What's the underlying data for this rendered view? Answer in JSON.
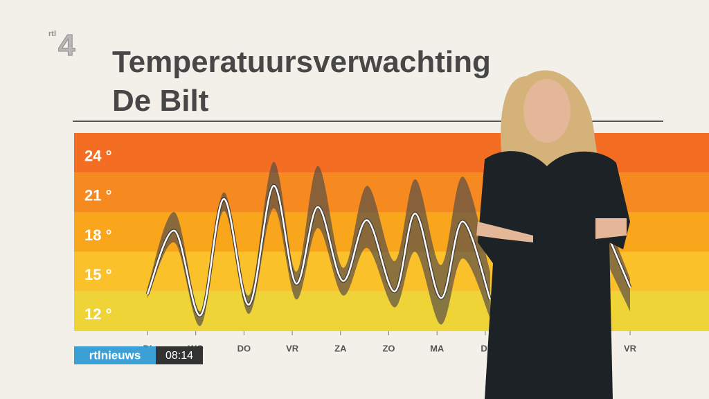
{
  "chart_data": {
    "type": "line",
    "title": "Temperatuursverwachting",
    "subtitle": "De Bilt",
    "channel": "4",
    "channel_prefix": "rtl",
    "ticker_brand": "rtlnieuws",
    "ticker_time": "08:14",
    "x": [
      0,
      0.56,
      1.1,
      1.58,
      2.1,
      2.61,
      3.08,
      3.53,
      4.05,
      4.55,
      5.12,
      5.55,
      6.08,
      6.53,
      7.1,
      8.3,
      9.57,
      10
    ],
    "values": [
      13.3,
      18.1,
      11.7,
      20.5,
      12.5,
      21.5,
      14.1,
      19.9,
      14.3,
      18.9,
      13.5,
      19.4,
      13.0,
      18.8,
      12.9,
      null,
      17.5,
      13.8
    ],
    "upper": [
      13.8,
      19.5,
      12.0,
      21.0,
      13.2,
      23.3,
      15.0,
      23.0,
      15.3,
      21.5,
      15.8,
      22.0,
      15.5,
      22.2,
      15.0,
      null,
      18.5,
      14.5
    ],
    "lower": [
      13.0,
      17.2,
      10.9,
      19.6,
      11.8,
      19.8,
      12.9,
      18.3,
      13.2,
      16.8,
      12.3,
      16.5,
      11.0,
      16.0,
      11.5,
      null,
      15.3,
      12.0
    ],
    "color": "#ffffff",
    "range_color": "#5a4f46",
    "xlim": [
      0,
      10
    ],
    "xticks": [
      {
        "value": 0,
        "label": "DI"
      },
      {
        "value": 1,
        "label": "WO"
      },
      {
        "value": 2,
        "label": "DO"
      },
      {
        "value": 3,
        "label": "VR"
      },
      {
        "value": 4,
        "label": "ZA"
      },
      {
        "value": 5,
        "label": "ZO"
      },
      {
        "value": 6,
        "label": "MA"
      },
      {
        "value": 7,
        "label": "DI"
      },
      {
        "value": 10,
        "label": "VR"
      }
    ],
    "ylim": [
      10.5,
      25.5
    ],
    "yticks": [
      {
        "value": 24,
        "label": "24 °"
      },
      {
        "value": 21,
        "label": "21 °"
      },
      {
        "value": 18,
        "label": "18 °"
      },
      {
        "value": 15,
        "label": "15 °"
      },
      {
        "value": 12,
        "label": "12 °"
      }
    ],
    "band_colors": [
      "#f36d22",
      "#f6891f",
      "#f9a61c",
      "#fbc12b",
      "#efd438"
    ]
  }
}
